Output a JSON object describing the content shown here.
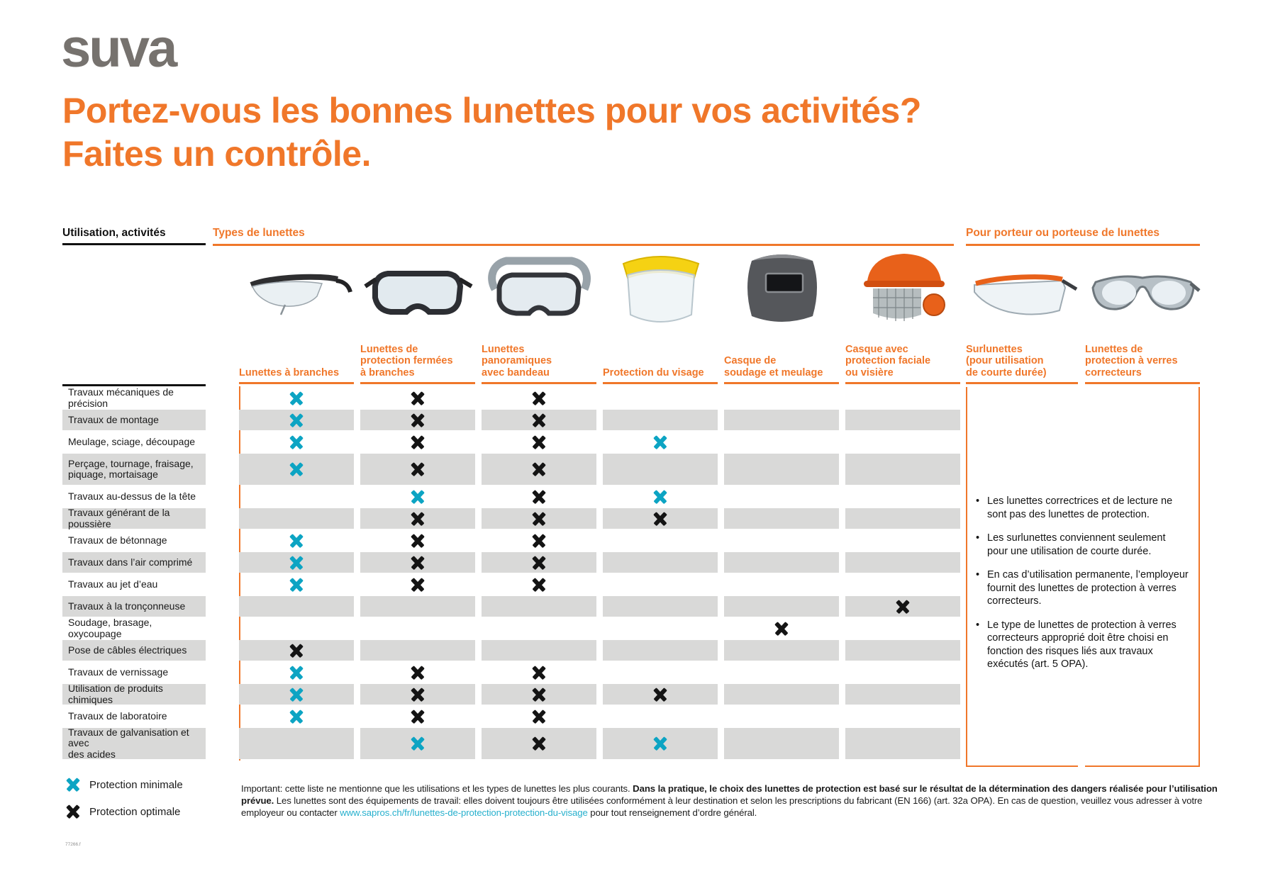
{
  "logo_text": "suva",
  "title": "Portez-vous les bonnes lunettes pour vos activités?\nFaites un contrôle.",
  "colors": {
    "orange_accent": "#f0772a",
    "teal_minimal": "#0ca4c3",
    "black_optimal": "#141414",
    "row_stripe_gray": "#d9d9d8",
    "logo_gray": "#76726e",
    "link_teal": "#27b0cd"
  },
  "table": {
    "corner_header": "Utilisation, activités",
    "group_header_types": "Types de lunettes",
    "group_header_wearers": "Pour porteur ou porteuse de lunettes",
    "columns": [
      "Lunettes à branches",
      "Lunettes de\nprotection fermées\nà branches",
      "Lunettes\npanoramiques\navec bandeau",
      "Protection du visage",
      "Casque de\nsoudage et meulage",
      "Casque avec\nprotection faciale\nou visière",
      "Surlunettes\n(pour utilisation\nde courte durée)",
      "Lunettes de\nprotection à verres\ncorrecteurs"
    ],
    "photo_icons": [
      "branch-safety-glasses-photo",
      "closed-branch-goggles-photo",
      "panoramic-goggles-headband-photo",
      "face-shield-photo",
      "welding-grinding-helmet-photo",
      "helmet-face-protection-visor-photo",
      "over-glasses-photo",
      "corrective-safety-glasses-photo"
    ],
    "rows": [
      {
        "label": "Travaux mécaniques de précision",
        "marks": [
          "min",
          "opt",
          "opt",
          null,
          null,
          null
        ]
      },
      {
        "label": "Travaux de montage",
        "marks": [
          "min",
          "opt",
          "opt",
          null,
          null,
          null
        ]
      },
      {
        "label": "Meulage, sciage, découpage",
        "marks": [
          "min",
          "opt",
          "opt",
          "min",
          null,
          null
        ]
      },
      {
        "label": "Perçage, tournage, fraisage,\npiquage, mortaisage",
        "marks": [
          "min",
          "opt",
          "opt",
          null,
          null,
          null
        ]
      },
      {
        "label": "Travaux au-dessus de la tête",
        "marks": [
          null,
          "min",
          "opt",
          "min",
          null,
          null
        ]
      },
      {
        "label": "Travaux générant de la poussière",
        "marks": [
          null,
          "opt",
          "opt",
          "opt",
          null,
          null
        ]
      },
      {
        "label": "Travaux de bétonnage",
        "marks": [
          "min",
          "opt",
          "opt",
          null,
          null,
          null
        ]
      },
      {
        "label": "Travaux dans l’air comprimé",
        "marks": [
          "min",
          "opt",
          "opt",
          null,
          null,
          null
        ]
      },
      {
        "label": "Travaux au jet d’eau",
        "marks": [
          "min",
          "opt",
          "opt",
          null,
          null,
          null
        ]
      },
      {
        "label": "Travaux à la tronçonneuse",
        "marks": [
          null,
          null,
          null,
          null,
          null,
          "opt"
        ]
      },
      {
        "label": "Soudage, brasage, oxycoupage",
        "marks": [
          null,
          null,
          null,
          null,
          "opt",
          null
        ]
      },
      {
        "label": "Pose de câbles électriques",
        "marks": [
          "opt",
          null,
          null,
          null,
          null,
          null
        ]
      },
      {
        "label": "Travaux de vernissage",
        "marks": [
          "min",
          "opt",
          "opt",
          null,
          null,
          null
        ]
      },
      {
        "label": "Utilisation de produits chimiques",
        "marks": [
          "min",
          "opt",
          "opt",
          "opt",
          null,
          null
        ]
      },
      {
        "label": "Travaux de laboratoire",
        "marks": [
          "min",
          "opt",
          "opt",
          null,
          null,
          null
        ]
      },
      {
        "label": "Travaux de galvanisation et avec\ndes acides",
        "marks": [
          null,
          "min",
          "opt",
          "min",
          null,
          null
        ]
      }
    ]
  },
  "notes": [
    "Les lunettes correctrices et de lecture ne sont pas des lunettes de protection.",
    "Les surlunettes conviennent seulement pour une utilisation de courte durée.",
    "En cas d’utilisation permanente, l’employeur fournit des lunettes de protection à verres correcteurs.",
    "Le type de lunettes de protection à verres correcteurs approprié doit être choisi en fonction des risques liés aux travaux exécutés (art. 5 OPA)."
  ],
  "legend": [
    {
      "type": "min",
      "label": "Protection minimale"
    },
    {
      "type": "opt",
      "label": "Protection optimale"
    }
  ],
  "footer": {
    "intro": "Important: cette liste ne mentionne que les utilisations et les types de lunettes les plus courants. ",
    "emphasis": "Dans la pratique, le choix des lunettes de protection est basé sur le résultat de la détermination des dangers réalisée pour l’utilisation prévue.",
    "middle": " Les lunettes sont des équipements de travail: elles doivent toujours être utilisées conformément à leur destination et selon les prescriptions du fabricant (EN 166) (art. 32a OPA). En cas de question, veuillez vous adresser à votre employeur ou contacter ",
    "link": "www.sapros.ch/fr/lunettes-de-protection-protection-du-visage",
    "outro": " pour tout renseignement d’ordre général."
  },
  "doc_code": "77266.f"
}
